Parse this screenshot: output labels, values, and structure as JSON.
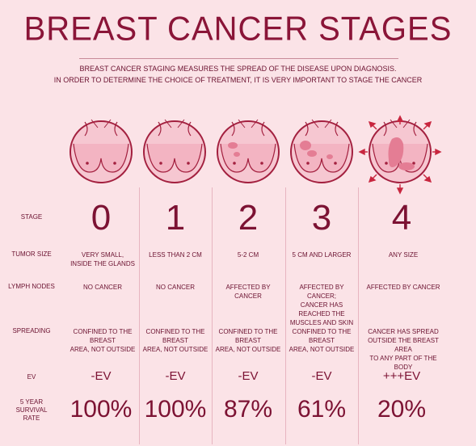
{
  "title": "BREAST CANCER STAGES",
  "subtitle_line1": "BREAST CANCER STAGING MEASURES THE SPREAD OF THE DISEASE UPON DIAGNOSIS.",
  "subtitle_line2": "IN ORDER TO DETERMINE THE CHOICE OF TREATMENT, IT IS VERY IMPORTANT TO STAGE THE CANCER",
  "colors": {
    "accent": "#8a1538",
    "background": "#fbe3e7",
    "tumor": "#e47d94"
  },
  "row_labels": {
    "stage": "STAGE",
    "tumor_size": "TUMOR SIZE",
    "lymph_nodes": "LYMPH NODES",
    "spreading": "SPREADING",
    "ev": "EV",
    "survival_1": "5 YEAR",
    "survival_2": "SURVIVAL",
    "survival_3": "RATE"
  },
  "stages": [
    {
      "stage": "0",
      "tumor_size_1": "VERY SMALL,",
      "tumor_size_2": "INSIDE THE GLANDS",
      "lymph_1": "NO CANCER",
      "lymph_2": "",
      "lymph_3": "",
      "spread_1": "CONFINED TO THE BREAST",
      "spread_2": "AREA, NOT OUTSIDE",
      "spread_3": "",
      "ev": "-EV",
      "survival": "100%"
    },
    {
      "stage": "1",
      "tumor_size_1": "LESS THAN 2 CM",
      "tumor_size_2": "",
      "lymph_1": "NO CANCER",
      "lymph_2": "",
      "lymph_3": "",
      "spread_1": "CONFINED TO THE BREAST",
      "spread_2": "AREA, NOT OUTSIDE",
      "spread_3": "",
      "ev": "-EV",
      "survival": "100%"
    },
    {
      "stage": "2",
      "tumor_size_1": "5-2 CM",
      "tumor_size_2": "",
      "lymph_1": "AFFECTED BY CANCER",
      "lymph_2": "",
      "lymph_3": "",
      "spread_1": "CONFINED TO THE BREAST",
      "spread_2": "AREA, NOT OUTSIDE",
      "spread_3": "",
      "ev": "-EV",
      "survival": "87%"
    },
    {
      "stage": "3",
      "tumor_size_1": "5 CM AND LARGER",
      "tumor_size_2": "",
      "lymph_1": "AFFECTED BY CANCER;",
      "lymph_2": "CANCER HAS REACHED THE",
      "lymph_3": "MUSCLES AND SKIN",
      "spread_1": "CONFINED TO THE BREAST",
      "spread_2": "AREA, NOT OUTSIDE",
      "spread_3": "",
      "ev": "-EV",
      "survival": "61%"
    },
    {
      "stage": "4",
      "tumor_size_1": "ANY SIZE",
      "tumor_size_2": "",
      "lymph_1": "AFFECTED BY CANCER",
      "lymph_2": "",
      "lymph_3": "",
      "spread_1": "CANCER HAS SPREAD",
      "spread_2": "OUTSIDE THE BREAST AREA",
      "spread_3": "TO ANY PART OF THE BODY",
      "ev": "+++EV",
      "survival": "20%"
    }
  ]
}
